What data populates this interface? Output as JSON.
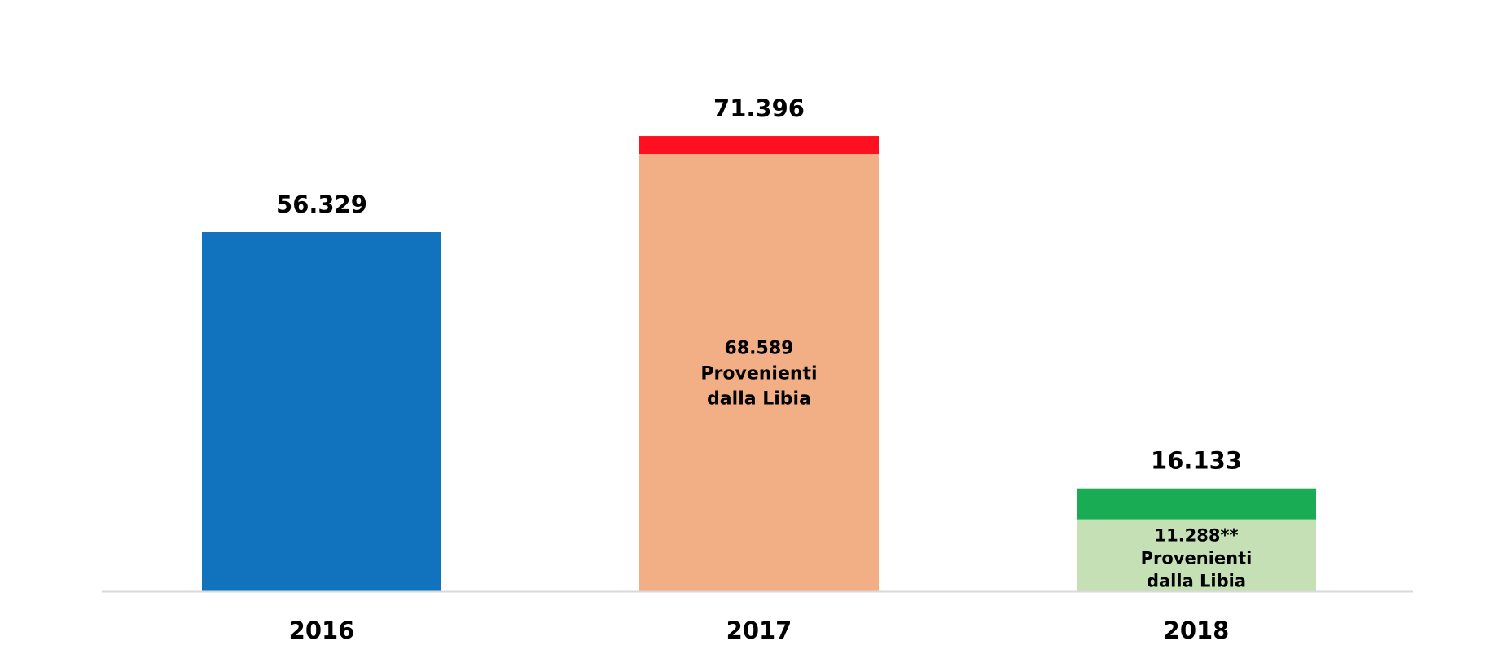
{
  "chart_data": {
    "type": "bar",
    "title": "",
    "xlabel": "",
    "ylabel": "",
    "categories": [
      "2016",
      "2017",
      "2018"
    ],
    "ylim": [
      0,
      76000
    ],
    "grid": false,
    "legend": "none",
    "axis_color": "#d9d9d9",
    "bars": [
      {
        "category": "2016",
        "total": 56329,
        "total_label": "56.329",
        "segments": [
          {
            "value": 56329,
            "color": "#1172be",
            "label_lines": []
          }
        ]
      },
      {
        "category": "2017",
        "total": 71396,
        "total_label": "71.396",
        "segments": [
          {
            "value": 68589,
            "color": "#f2af86",
            "label_lines": [
              "68.589",
              "Provenienti",
              "dalla Libia"
            ]
          },
          {
            "value": 2807,
            "color": "#ff1020",
            "label_lines": []
          }
        ]
      },
      {
        "category": "2018",
        "total": 16133,
        "total_label": "16.133",
        "segments": [
          {
            "value": 11288,
            "color": "#c5e0b4",
            "label_lines": [
              "11.288**",
              "Provenienti",
              "dalla Libia"
            ]
          },
          {
            "value": 4845,
            "color": "#1aac54",
            "label_lines": []
          }
        ]
      }
    ]
  }
}
